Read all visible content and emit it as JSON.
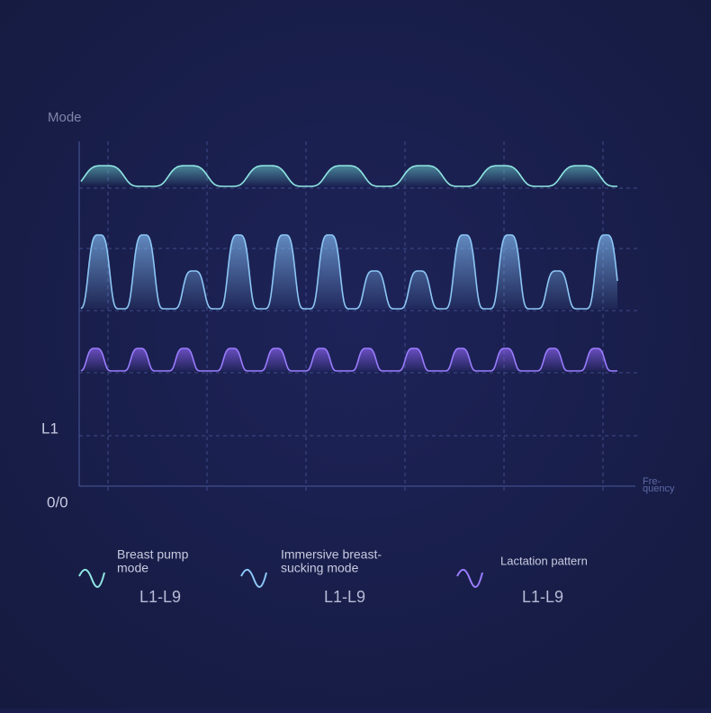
{
  "axis": {
    "y_label": "Mode",
    "y_level": "L1",
    "origin": "0/0",
    "x_label_lines": [
      "Fre-",
      "quency"
    ]
  },
  "legend": [
    {
      "label_lines": [
        "Breast pump",
        "mode"
      ],
      "range": "L1-L9"
    },
    {
      "label_lines": [
        "Immersive breast-",
        "sucking mode"
      ],
      "range": "L1-L9"
    },
    {
      "label_lines": [
        "Lactation pattern"
      ],
      "range": "L1-L9"
    }
  ]
}
